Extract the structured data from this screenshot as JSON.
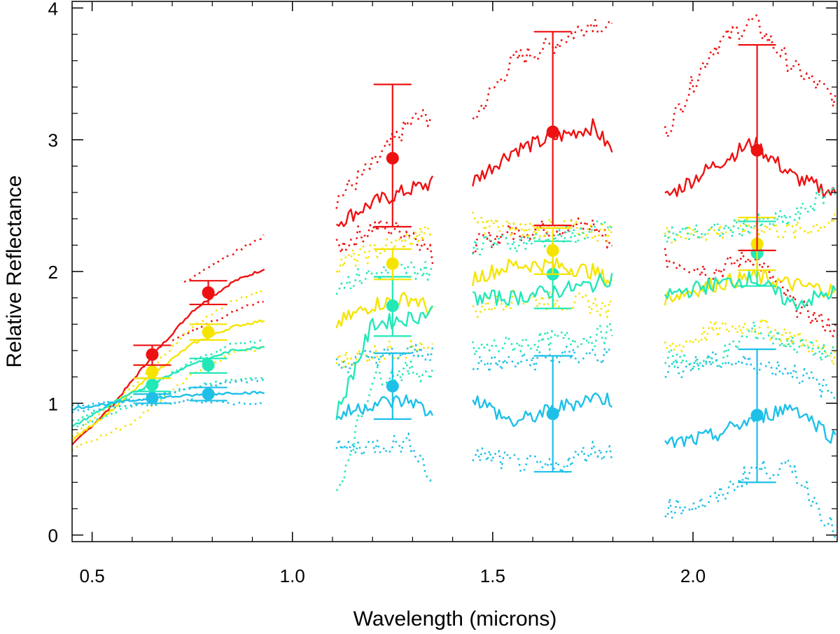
{
  "chart_data": {
    "type": "line",
    "title": "",
    "xlabel": "Wavelength (microns)",
    "ylabel": "Relative Reflectance",
    "xlim": [
      0.45,
      2.36
    ],
    "ylim": [
      -0.05,
      4.05
    ],
    "grid": false,
    "x_ticks": [
      0.5,
      1.0,
      1.5,
      2.0
    ],
    "x_tick_labels": [
      "0.5",
      "1.0",
      "1.5",
      "2.0"
    ],
    "y_ticks": [
      0,
      1,
      2,
      3,
      4
    ],
    "y_tick_labels": [
      "0",
      "1",
      "2",
      "3",
      "4"
    ],
    "segments": [
      {
        "start": 0.45,
        "end": 0.93
      },
      {
        "start": 1.11,
        "end": 1.35
      },
      {
        "start": 1.45,
        "end": 1.8
      },
      {
        "start": 1.93,
        "end": 2.36
      }
    ],
    "series": [
      {
        "name": "red",
        "color": "#ee1111",
        "band_values": [
          1.37,
          1.84,
          2.86,
          3.06,
          2.92
        ],
        "upper_bound_values": [
          1.44,
          1.93,
          3.42,
          3.82,
          3.72
        ],
        "lower_bound_values": [
          1.29,
          1.75,
          2.34,
          2.35,
          2.16
        ],
        "mean_curve": {
          "x": [
            0.45,
            0.55,
            0.65,
            0.75,
            0.85,
            0.93,
            1.11,
            1.2,
            1.3,
            1.35,
            1.45,
            1.55,
            1.65,
            1.75,
            1.8,
            1.93,
            2.05,
            2.15,
            2.25,
            2.36
          ],
          "y": [
            0.68,
            0.98,
            1.36,
            1.7,
            1.92,
            2.02,
            2.37,
            2.52,
            2.63,
            2.67,
            2.68,
            2.92,
            3.01,
            3.1,
            2.91,
            2.56,
            2.8,
            2.98,
            2.72,
            2.58
          ]
        },
        "upper_curve": {
          "x": [
            0.73,
            0.8,
            0.87,
            0.93,
            1.11,
            1.2,
            1.3,
            1.35,
            1.45,
            1.55,
            1.65,
            1.75,
            1.8,
            1.93,
            2.05,
            2.15,
            2.25,
            2.36
          ],
          "y": [
            1.92,
            2.05,
            2.17,
            2.27,
            2.55,
            2.8,
            3.15,
            3.18,
            3.15,
            3.6,
            3.72,
            3.9,
            3.82,
            3.05,
            3.7,
            3.9,
            3.55,
            3.3
          ]
        },
        "lower_curve": {
          "x": [
            0.7,
            0.8,
            0.87,
            0.93,
            1.11,
            1.2,
            1.3,
            1.35,
            1.45,
            1.55,
            1.65,
            1.75,
            1.8,
            1.93,
            2.05,
            2.15,
            2.25,
            2.36
          ],
          "y": [
            1.48,
            1.62,
            1.72,
            1.78,
            2.17,
            2.34,
            2.3,
            2.12,
            2.2,
            2.3,
            2.33,
            2.35,
            2.2,
            2.1,
            2.0,
            2.12,
            1.75,
            1.55
          ]
        }
      },
      {
        "name": "yellow",
        "color": "#f5e400",
        "band_values": [
          1.24,
          1.54,
          2.06,
          2.16,
          2.21
        ],
        "upper_bound_values": [
          1.29,
          1.6,
          2.17,
          2.33,
          2.41
        ],
        "lower_bound_values": [
          1.19,
          1.48,
          1.94,
          1.98,
          2.01
        ],
        "mean_curve": {
          "x": [
            0.45,
            0.55,
            0.65,
            0.75,
            0.85,
            0.93,
            1.11,
            1.2,
            1.3,
            1.35,
            1.45,
            1.55,
            1.65,
            1.75,
            1.8,
            1.93,
            2.05,
            2.15,
            2.25,
            2.36
          ],
          "y": [
            0.72,
            0.95,
            1.22,
            1.45,
            1.58,
            1.63,
            1.6,
            1.75,
            1.8,
            1.7,
            1.95,
            2.05,
            2.05,
            2.0,
            1.92,
            1.8,
            1.9,
            1.96,
            1.9,
            1.85
          ]
        },
        "upper_curve": {
          "x": [
            0.45,
            0.6,
            0.75,
            0.85,
            0.93,
            1.11,
            1.2,
            1.3,
            1.35,
            1.45,
            1.55,
            1.65,
            1.75,
            1.8,
            1.93,
            2.05,
            2.15,
            2.25,
            2.36
          ],
          "y": [
            0.75,
            1.12,
            1.58,
            1.78,
            1.85,
            2.05,
            2.15,
            2.25,
            2.3,
            2.38,
            2.32,
            2.33,
            2.3,
            2.3,
            2.28,
            2.3,
            2.35,
            2.3,
            2.4
          ]
        },
        "lower_curve": {
          "x": [
            0.45,
            0.6,
            0.75,
            0.85,
            0.93,
            1.11,
            1.2,
            1.3,
            1.35,
            1.45,
            1.55,
            1.65,
            1.75,
            1.8,
            1.93,
            2.05,
            2.15,
            2.25,
            2.36
          ],
          "y": [
            0.65,
            0.85,
            1.22,
            1.38,
            1.42,
            1.32,
            1.38,
            1.42,
            1.38,
            1.7,
            1.8,
            1.78,
            1.75,
            1.7,
            1.4,
            1.55,
            1.6,
            1.5,
            1.35
          ]
        }
      },
      {
        "name": "teal",
        "color": "#22e8b8",
        "band_values": [
          1.14,
          1.29,
          1.74,
          1.98,
          2.14
        ],
        "upper_bound_values": [
          1.19,
          1.34,
          1.96,
          2.23,
          2.38
        ],
        "lower_bound_values": [
          1.09,
          1.23,
          1.51,
          1.72,
          1.89
        ],
        "mean_curve": {
          "x": [
            0.45,
            0.55,
            0.65,
            0.75,
            0.85,
            0.93,
            1.11,
            1.2,
            1.3,
            1.35,
            1.45,
            1.55,
            1.65,
            1.75,
            1.8,
            1.93,
            2.05,
            2.15,
            2.25,
            2.36
          ],
          "y": [
            0.82,
            1.0,
            1.15,
            1.3,
            1.4,
            1.43,
            0.92,
            1.6,
            1.65,
            1.7,
            1.8,
            1.8,
            1.85,
            1.9,
            1.96,
            1.82,
            1.9,
            1.95,
            1.75,
            1.85
          ]
        },
        "upper_curve": {
          "x": [
            0.45,
            0.6,
            0.75,
            0.85,
            0.93,
            1.11,
            1.2,
            1.3,
            1.35,
            1.45,
            1.55,
            1.65,
            1.75,
            1.8,
            1.93,
            2.05,
            2.15,
            2.25,
            2.36
          ],
          "y": [
            0.86,
            1.05,
            1.32,
            1.45,
            1.48,
            1.9,
            1.98,
            2.02,
            2.0,
            2.2,
            2.22,
            2.25,
            2.3,
            2.35,
            2.28,
            2.3,
            2.35,
            2.4,
            2.65
          ]
        },
        "lower_curve": {
          "x": [
            0.45,
            0.6,
            0.75,
            0.85,
            0.93,
            1.11,
            1.2,
            1.3,
            1.35,
            1.45,
            1.55,
            1.65,
            1.75,
            1.8,
            1.93,
            2.05,
            2.15,
            2.25,
            2.36
          ],
          "y": [
            0.8,
            0.98,
            1.12,
            1.18,
            1.2,
            0.3,
            1.2,
            1.25,
            1.23,
            1.4,
            1.45,
            1.48,
            1.5,
            1.55,
            1.35,
            1.3,
            1.55,
            1.45,
            1.35
          ]
        }
      },
      {
        "name": "blue",
        "color": "#1ec0e8",
        "band_values": [
          1.04,
          1.07,
          1.13,
          0.92,
          0.91
        ],
        "upper_bound_values": [
          1.07,
          1.12,
          1.38,
          1.36,
          1.41
        ],
        "lower_bound_values": [
          1.0,
          1.02,
          0.88,
          0.48,
          0.4
        ],
        "mean_curve": {
          "x": [
            0.45,
            0.55,
            0.65,
            0.75,
            0.85,
            0.93,
            1.11,
            1.2,
            1.3,
            1.35,
            1.45,
            1.55,
            1.65,
            1.75,
            1.8,
            1.93,
            2.05,
            2.15,
            2.25,
            2.36
          ],
          "y": [
            0.96,
            1.0,
            1.04,
            1.06,
            1.08,
            1.08,
            0.9,
            1.0,
            1.02,
            0.9,
            1.05,
            0.85,
            0.95,
            1.05,
            1.02,
            0.68,
            0.75,
            0.88,
            0.98,
            0.72
          ]
        },
        "upper_curve": {
          "x": [
            0.45,
            0.6,
            0.75,
            0.85,
            0.93,
            1.11,
            1.2,
            1.3,
            1.35,
            1.45,
            1.55,
            1.65,
            1.75,
            1.8,
            1.93,
            2.05,
            2.15,
            2.25,
            2.36
          ],
          "y": [
            0.98,
            1.02,
            1.12,
            1.16,
            1.18,
            1.28,
            1.35,
            1.38,
            1.4,
            1.3,
            1.3,
            1.35,
            1.37,
            1.35,
            1.25,
            1.32,
            1.3,
            1.25,
            1.05
          ]
        },
        "lower_curve": {
          "x": [
            0.45,
            0.6,
            0.75,
            0.85,
            0.93,
            1.11,
            1.2,
            1.3,
            1.35,
            1.45,
            1.55,
            1.65,
            1.75,
            1.8,
            1.93,
            2.05,
            2.15,
            2.25,
            2.36
          ],
          "y": [
            0.94,
            0.98,
            1.02,
            1.0,
            1.0,
            0.65,
            0.68,
            0.7,
            0.4,
            0.62,
            0.55,
            0.5,
            0.65,
            0.62,
            0.2,
            0.25,
            0.5,
            0.5,
            0.0
          ]
        }
      }
    ],
    "band_centers": [
      0.65,
      0.79,
      1.25,
      1.65,
      2.16
    ]
  }
}
